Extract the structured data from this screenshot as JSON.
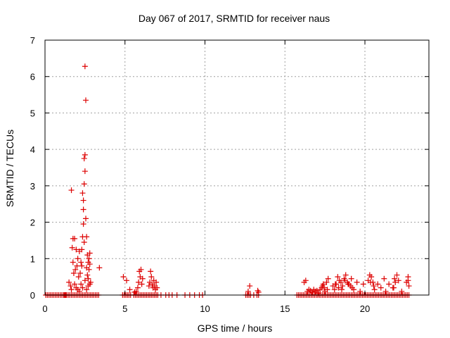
{
  "chart_data": {
    "type": "scatter",
    "title": "Day 067 of 2017, SRMTID for receiver naus",
    "xlabel": "GPS time / hours",
    "ylabel": "SRMTID / TECUs",
    "xlim": [
      0,
      24
    ],
    "ylim": [
      0,
      7
    ],
    "xticks": [
      0,
      5,
      10,
      15,
      20
    ],
    "yticks": [
      0,
      1,
      2,
      3,
      4,
      5,
      6,
      7
    ],
    "xtick_labels": [
      "0",
      "5",
      "10",
      "15",
      "20"
    ],
    "ytick_labels": [
      "0",
      "1",
      "2",
      "3",
      "4",
      "5",
      "6",
      "7"
    ],
    "grid": true,
    "marker": "plus",
    "color": "#dd0000",
    "series": [
      {
        "name": "SRMTID",
        "x": [
          0.05,
          0.15,
          0.25,
          0.35,
          0.45,
          0.55,
          0.65,
          0.75,
          0.85,
          0.95,
          1.05,
          1.15,
          1.25,
          1.35,
          1.45,
          1.55,
          1.65,
          1.75,
          1.85,
          1.95,
          2.05,
          2.15,
          2.25,
          2.35,
          2.45,
          2.55,
          2.65,
          2.75,
          2.85,
          2.95,
          3.05,
          3.15,
          3.25,
          3.35,
          4.85,
          4.95,
          5.05,
          5.15,
          5.25,
          5.35,
          5.55,
          5.65,
          5.75,
          5.85,
          5.95,
          6.05,
          6.15,
          6.25,
          6.35,
          6.45,
          6.55,
          6.65,
          6.75,
          6.85,
          6.95,
          7.05,
          7.25,
          7.55,
          7.75,
          7.95,
          8.25,
          8.75,
          9.05,
          9.35,
          9.65,
          9.85,
          12.55,
          12.65,
          12.75,
          12.85,
          13.05,
          13.25,
          13.35,
          15.75,
          15.85,
          15.95,
          16.05,
          16.15,
          16.25,
          16.35,
          16.45,
          16.55,
          16.65,
          16.75,
          16.85,
          16.95,
          17.05,
          17.15,
          17.25,
          17.35,
          17.45,
          17.55,
          17.65,
          17.75,
          17.85,
          17.95,
          18.05,
          18.15,
          18.25,
          18.35,
          18.45,
          18.55,
          18.65,
          18.75,
          18.85,
          18.95,
          19.05,
          19.15,
          19.25,
          19.35,
          19.45,
          19.55,
          19.65,
          19.75,
          19.85,
          19.95,
          20.05,
          20.15,
          20.25,
          20.35,
          20.45,
          20.55,
          20.65,
          20.75,
          20.85,
          20.95,
          21.05,
          21.15,
          21.25,
          21.35,
          21.45,
          21.55,
          21.65,
          21.75,
          21.85,
          21.95,
          22.05,
          22.15,
          22.25,
          22.35,
          22.45,
          22.55,
          22.65,
          22.75,
          1.2,
          1.3,
          1.5,
          1.6,
          1.65,
          1.7,
          1.75,
          1.8,
          1.85,
          1.9,
          1.95,
          2.0,
          2.05,
          2.1,
          2.15,
          2.2,
          2.25,
          2.3,
          2.3,
          2.35,
          2.35,
          2.4,
          2.4,
          2.4,
          2.45,
          2.45,
          2.45,
          2.5,
          2.5,
          2.5,
          2.55,
          2.55,
          2.6,
          2.6,
          2.65,
          2.65,
          2.7,
          2.7,
          2.75,
          2.75,
          2.8,
          2.8,
          2.85,
          3.4,
          1.65,
          1.75,
          1.85,
          1.95,
          2.05,
          2.15,
          2.25,
          2.35,
          2.5,
          2.6,
          2.7,
          2.8,
          4.9,
          5.1,
          5.3,
          5.6,
          5.7,
          5.8,
          5.85,
          5.9,
          5.95,
          6.0,
          6.05,
          6.1,
          6.5,
          6.55,
          6.6,
          6.65,
          6.7,
          6.75,
          6.8,
          6.85,
          6.9,
          6.95,
          7.0,
          12.7,
          12.8,
          13.3,
          13.35,
          16.2,
          16.3,
          16.4,
          16.5,
          16.6,
          16.7,
          16.8,
          16.9,
          17.0,
          17.1,
          17.2,
          17.3,
          17.4,
          17.5,
          17.6,
          17.7,
          18.0,
          18.1,
          18.2,
          18.3,
          18.4,
          18.5,
          18.6,
          18.7,
          18.8,
          18.9,
          19.0,
          19.1,
          19.2,
          19.3,
          19.5,
          19.7,
          19.9,
          20.2,
          20.3,
          20.4,
          20.5,
          20.6,
          20.8,
          21.0,
          21.2,
          21.3,
          21.5,
          21.8,
          21.9,
          22.0,
          22.1,
          22.3,
          22.6,
          22.7,
          22.75,
          18.15,
          18.35,
          18.55,
          18.75,
          18.95,
          19.15,
          20.35,
          20.55,
          21.75,
          21.85,
          22.7,
          17.35,
          17.45,
          17.65
        ],
        "y": [
          0,
          0,
          0,
          0,
          0,
          0,
          0,
          0,
          0,
          0,
          0,
          0,
          0,
          0,
          0,
          0,
          0,
          0,
          0,
          0,
          0,
          0,
          0,
          0,
          0,
          0,
          0,
          0,
          0,
          0,
          0,
          0,
          0,
          0,
          0,
          0,
          0,
          0,
          0,
          0,
          0,
          0,
          0,
          0,
          0,
          0,
          0,
          0,
          0,
          0,
          0,
          0,
          0,
          0,
          0,
          0,
          0,
          0,
          0,
          0,
          0,
          0,
          0,
          0,
          0,
          0,
          0,
          0,
          0,
          0,
          0,
          0,
          0,
          0,
          0,
          0,
          0,
          0,
          0,
          0,
          0,
          0,
          0,
          0,
          0,
          0,
          0,
          0,
          0,
          0,
          0,
          0,
          0,
          0,
          0,
          0,
          0,
          0,
          0,
          0,
          0,
          0,
          0,
          0,
          0,
          0,
          0,
          0,
          0,
          0,
          0,
          0,
          0,
          0,
          0,
          0,
          0,
          0,
          0,
          0,
          0,
          0,
          0,
          0,
          0,
          0,
          0,
          0,
          0,
          0,
          0,
          0,
          0,
          0,
          0,
          0,
          0,
          0,
          0,
          0,
          0,
          0,
          0,
          0,
          0,
          0,
          0.35,
          0.25,
          0.15,
          1.3,
          0.9,
          0.6,
          1.55,
          0.7,
          1.25,
          0.8,
          1.0,
          0.5,
          1.2,
          0.6,
          0.9,
          1.25,
          0.8,
          1.6,
          2.8,
          1.95,
          2.6,
          2.35,
          3.05,
          3.75,
          1.45,
          3.4,
          3.85,
          6.28,
          5.35,
          2.1,
          1.6,
          0.75,
          1.1,
          0.55,
          0.9,
          0.45,
          1.0,
          0.7,
          0.85,
          1.15,
          0.35,
          0.75,
          2.88,
          1.55,
          0.3,
          0.2,
          0.15,
          0.1,
          0.3,
          0.2,
          0.4,
          0.15,
          0.25,
          0.3,
          0.5,
          0.4,
          0.15,
          0.08,
          0.1,
          0.2,
          0.35,
          0.65,
          0.5,
          0.7,
          0.3,
          0.45,
          0.25,
          0.35,
          0.65,
          0.5,
          0.3,
          0.2,
          0.4,
          0.25,
          0.15,
          0.35,
          0.2,
          0.1,
          0.25,
          0.12,
          0.08,
          0.35,
          0.4,
          0.1,
          0.15,
          0.12,
          0.08,
          0.15,
          0.1,
          0.12,
          0.05,
          0.15,
          0.2,
          0.3,
          0.1,
          0.35,
          0.45,
          0.25,
          0.15,
          0.3,
          0.5,
          0.4,
          0.35,
          0.25,
          0.45,
          0.55,
          0.35,
          0.3,
          0.25,
          0.2,
          0.15,
          0.35,
          0.1,
          0.3,
          0.4,
          0.55,
          0.5,
          0.35,
          0.15,
          0.3,
          0.2,
          0.45,
          0.1,
          0.3,
          0.2,
          0.35,
          0.55,
          0.4,
          0.1,
          0.35,
          0.4,
          0.25,
          0.3,
          0.2,
          0.15,
          0.4,
          0.3,
          0.45,
          0.35,
          0.25,
          0.2,
          0.45,
          0.5,
          0.25,
          0.2,
          0.15
        ]
      }
    ]
  }
}
